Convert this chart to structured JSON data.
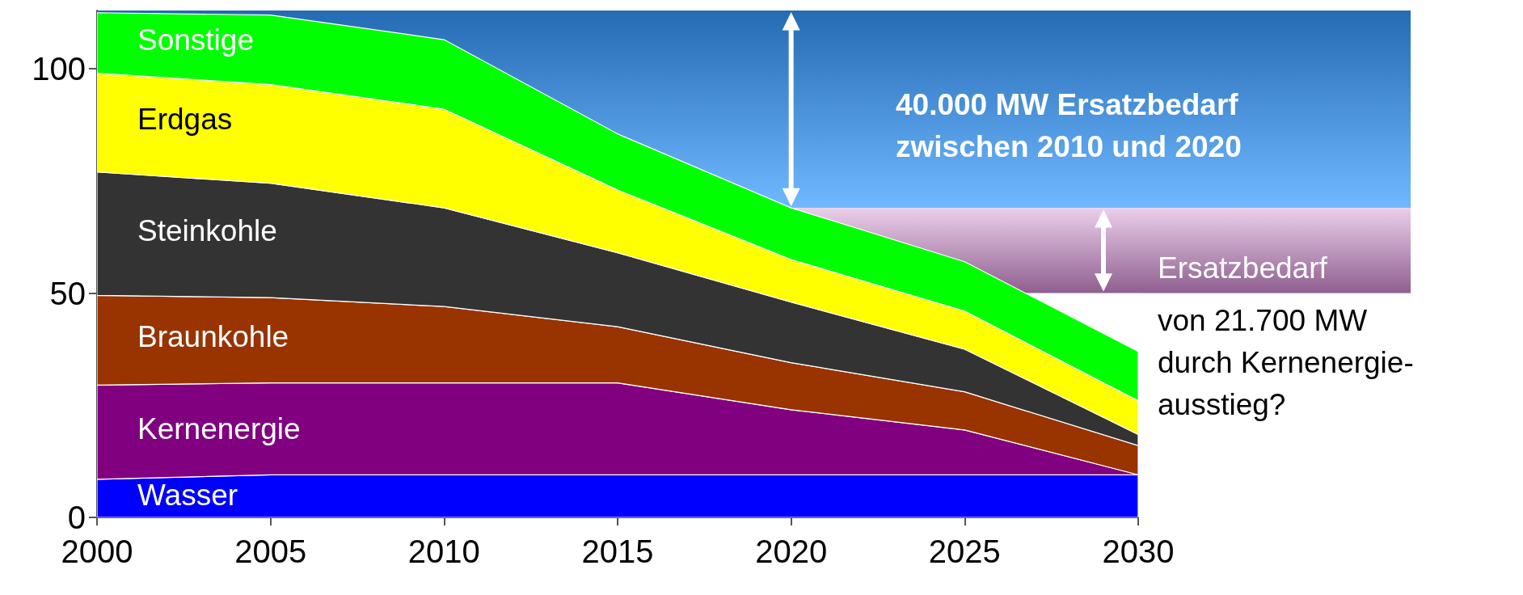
{
  "chart_data": {
    "type": "area",
    "stacked": true,
    "x": [
      2000,
      2005,
      2010,
      2015,
      2020,
      2025,
      2030
    ],
    "series": [
      {
        "name": "Wasser",
        "color": "#0000ff",
        "values": [
          8.5,
          9.5,
          9.5,
          9.5,
          9.5,
          9.5,
          9.5
        ]
      },
      {
        "name": "Kernenergie",
        "color": "#800080",
        "values": [
          21,
          20.5,
          20.5,
          20.5,
          14.5,
          10,
          0
        ]
      },
      {
        "name": "Braunkohle",
        "color": "#993300",
        "values": [
          20,
          19,
          17,
          12.5,
          10.5,
          8.5,
          6.5
        ]
      },
      {
        "name": "Steinkohle",
        "color": "#333333",
        "values": [
          27.5,
          25.5,
          22,
          16.5,
          13.5,
          9.5,
          2.5
        ]
      },
      {
        "name": "Erdgas",
        "color": "#ffff00",
        "values": [
          22,
          22,
          22,
          14,
          9.5,
          8.5,
          7.5
        ]
      },
      {
        "name": "Sonstige",
        "color": "#00ff00",
        "values": [
          13.5,
          15.5,
          15.5,
          12.5,
          11.5,
          11,
          11
        ]
      }
    ],
    "xlim": [
      2000,
      2030
    ],
    "xticks": [
      2000,
      2005,
      2010,
      2015,
      2020,
      2025,
      2030
    ],
    "ylim": [
      0,
      113
    ],
    "yticks": [
      0,
      50,
      100
    ],
    "bands": [
      {
        "axis": "y",
        "from": 69,
        "to": 113,
        "label": "40.000 MW Ersatzbedarf\nzwischen 2010 und 2020",
        "color": "#3399ff"
      },
      {
        "axis": "y",
        "from": 50,
        "to": 69,
        "label": "Ersatzbedarf\nvon 21.700 MW\ndurch Kernenergie-\nausstieg?",
        "color": "#cc88cc"
      }
    ],
    "grid": false,
    "legend": false
  }
}
